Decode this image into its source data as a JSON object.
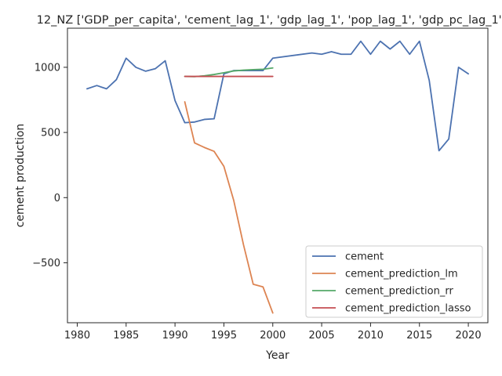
{
  "chart_data": {
    "type": "line",
    "title": "12_NZ ['GDP_per_capita', 'cement_lag_1', 'gdp_lag_1', 'pop_lag_1', 'gdp_pc_lag_1']",
    "xlabel": "Year",
    "ylabel": "cement production",
    "xlim": [
      1979,
      2022
    ],
    "ylim": [
      -960,
      1300
    ],
    "xticks": [
      1980,
      1985,
      1990,
      1995,
      2000,
      2005,
      2010,
      2015,
      2020
    ],
    "yticks": [
      -500,
      0,
      500,
      1000
    ],
    "ytick_labels": [
      "−500",
      "0",
      "500",
      "1000"
    ],
    "grid": false,
    "legend_position": "lower-right",
    "series": [
      {
        "name": "cement",
        "color": "#4c72b0",
        "x": [
          1981,
          1982,
          1983,
          1984,
          1985,
          1986,
          1987,
          1988,
          1989,
          1990,
          1991,
          1992,
          1993,
          1994,
          1995,
          1996,
          1997,
          1998,
          1999,
          2000,
          2004,
          2005,
          2006,
          2007,
          2008,
          2009,
          2010,
          2011,
          2012,
          2013,
          2014,
          2015,
          2016,
          2017,
          2018,
          2019,
          2020
        ],
        "y": [
          835,
          860,
          835,
          905,
          1070,
          1000,
          970,
          990,
          1050,
          745,
          575,
          580,
          600,
          605,
          950,
          975,
          975,
          975,
          975,
          1070,
          1110,
          1100,
          1120,
          1100,
          1100,
          1200,
          1100,
          1200,
          1140,
          1200,
          1100,
          1200,
          900,
          360,
          450,
          1000,
          950
        ]
      },
      {
        "name": "cement_prediction_lm",
        "color": "#dd8452",
        "x": [
          1991,
          1992,
          1993,
          1994,
          1995,
          1996,
          1997,
          1998,
          1999,
          2000
        ],
        "y": [
          735,
          420,
          385,
          355,
          240,
          -20,
          -360,
          -665,
          -685,
          -885
        ]
      },
      {
        "name": "cement_prediction_rr",
        "color": "#55a868",
        "x": [
          1991,
          1992,
          1993,
          1994,
          1995,
          1996,
          1997,
          1998,
          1999,
          2000
        ],
        "y": [
          930,
          928,
          935,
          945,
          958,
          972,
          978,
          982,
          985,
          995
        ]
      },
      {
        "name": "cement_prediction_lasso",
        "color": "#c44e52",
        "x": [
          1991,
          1992,
          1993,
          1994,
          1995,
          1996,
          1997,
          1998,
          1999,
          2000
        ],
        "y": [
          930,
          930,
          930,
          930,
          930,
          930,
          930,
          930,
          930,
          930
        ]
      }
    ]
  }
}
